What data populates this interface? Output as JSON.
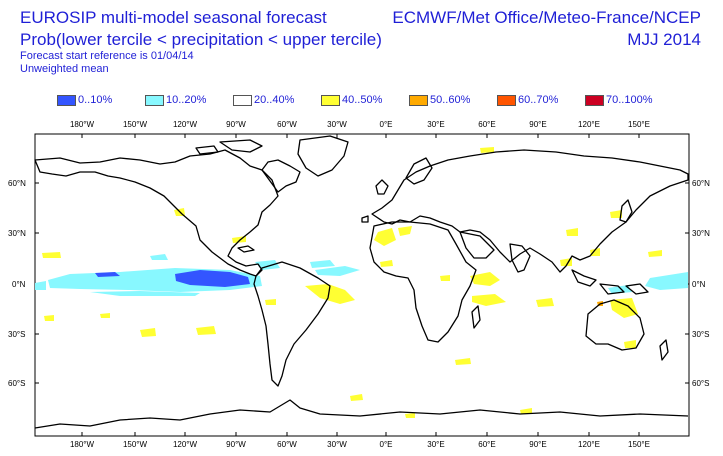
{
  "header": {
    "title_line1": "EUROSIP multi-model seasonal forecast",
    "title_line2": "Prob(lower tercile < precipitation < upper tercile)",
    "subtitle_line1": "Forecast start reference is 01/04/14",
    "subtitle_line2": "Unweighted mean",
    "centres": "ECMWF/Met Office/Meteo-France/NCEP",
    "period": "MJJ 2014"
  },
  "legend": [
    {
      "label": "0..10%",
      "color": "#3355ff"
    },
    {
      "label": "10..20%",
      "color": "#88f8ff"
    },
    {
      "label": "20..40%",
      "color": "#ffffff"
    },
    {
      "label": "40..50%",
      "color": "#ffff33"
    },
    {
      "label": "50..60%",
      "color": "#ffaa00"
    },
    {
      "label": "60..70%",
      "color": "#ff5500"
    },
    {
      "label": "70..100%",
      "color": "#cc0022"
    }
  ],
  "axes": {
    "lon_labels": [
      "180°W",
      "150°W",
      "120°W",
      "90°W",
      "60°W",
      "30°W",
      "0°E",
      "30°E",
      "60°E",
      "90°E",
      "120°E",
      "150°E"
    ],
    "lat_labels": [
      "60°N",
      "30°N",
      "0°N",
      "30°S",
      "60°S"
    ]
  }
}
